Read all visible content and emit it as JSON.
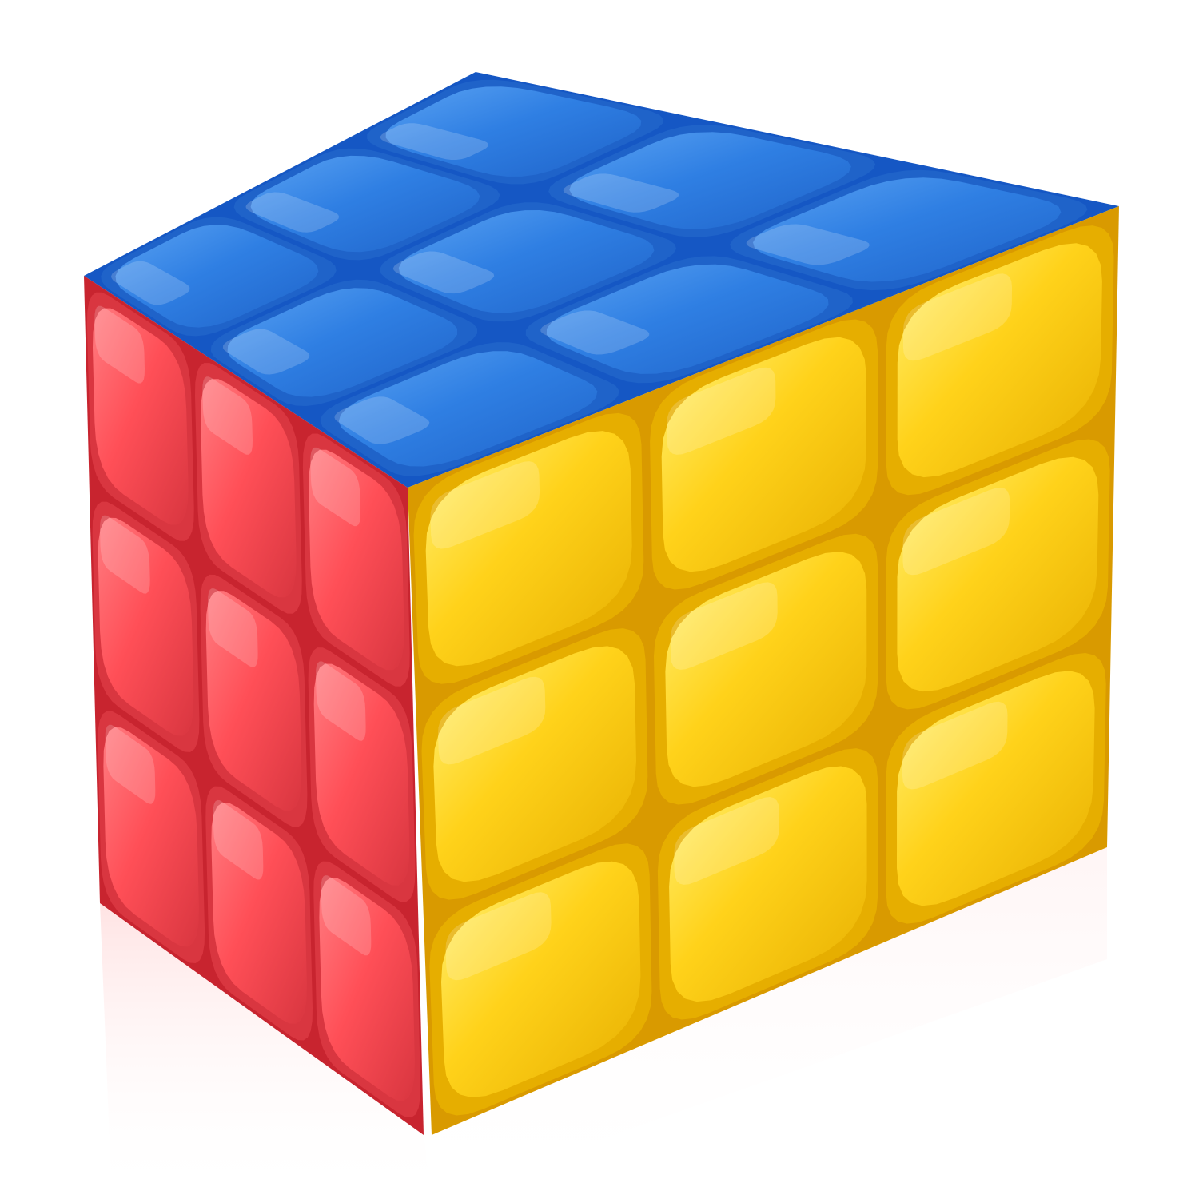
{
  "image": {
    "subject": "rubiks-cube-3x3",
    "background_color": "#ffffff"
  },
  "cube": {
    "grid_size": 3,
    "faces": [
      {
        "id": "top",
        "color": "#2f7fe3",
        "shade_color": "#1f63c9",
        "highlight_color": "#5aa2f2",
        "stickers": [
          [
            "blue",
            "blue",
            "blue"
          ],
          [
            "blue",
            "blue",
            "blue"
          ],
          [
            "blue",
            "blue",
            "blue"
          ]
        ]
      },
      {
        "id": "left",
        "color": "#ff4f57",
        "shade_color": "#d93640",
        "highlight_color": "#ff7b80",
        "stickers": [
          [
            "red",
            "red",
            "red"
          ],
          [
            "red",
            "red",
            "red"
          ],
          [
            "red",
            "red",
            "red"
          ]
        ]
      },
      {
        "id": "right",
        "color": "#ffd21a",
        "shade_color": "#e6ae00",
        "highlight_color": "#fff27a",
        "stickers": [
          [
            "yellow",
            "yellow",
            "yellow"
          ],
          [
            "yellow",
            "yellow",
            "yellow"
          ],
          [
            "yellow",
            "yellow",
            "yellow"
          ]
        ]
      }
    ],
    "gap_colors": {
      "top": "#1557c4",
      "left": "#c8242f",
      "right": "#d99a00"
    }
  },
  "reflection": {
    "visible": true,
    "color": "#ffe0e0"
  }
}
